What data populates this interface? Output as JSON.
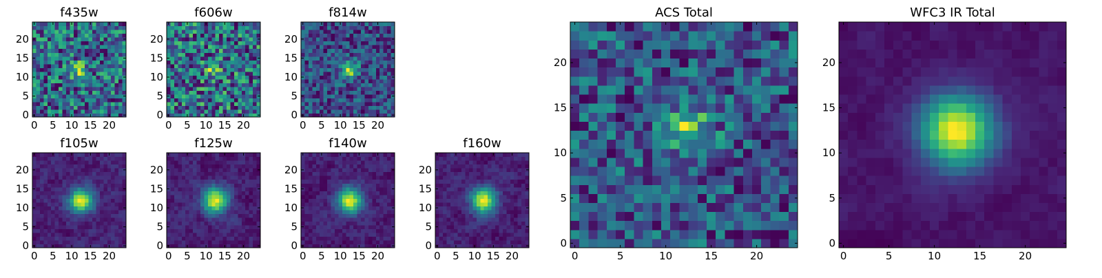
{
  "figure": {
    "background": "#ffffff"
  },
  "colormap": {
    "name": "viridis",
    "stops": [
      "#440154",
      "#482878",
      "#3e4989",
      "#31688e",
      "#26828e",
      "#1f9e89",
      "#35b779",
      "#6ece58",
      "#b5de2b",
      "#fde725"
    ]
  },
  "chart_data": [
    {
      "type": "heatmap",
      "title": "f435w",
      "size": 25,
      "xticks": [
        0,
        5,
        10,
        15,
        20
      ],
      "yticks": [
        0,
        5,
        10,
        15,
        20
      ],
      "xlim": [
        -0.5,
        24.5
      ],
      "ylim": [
        -0.5,
        24.5
      ],
      "sigma": 1.5,
      "peak": 0.25,
      "base": 0.72,
      "noise": 0.2,
      "smooth": 0,
      "seed": 11,
      "center": [
        12,
        12
      ]
    },
    {
      "type": "heatmap",
      "title": "f606w",
      "size": 25,
      "xticks": [
        0,
        5,
        10,
        15,
        20
      ],
      "yticks": [
        0,
        5,
        10,
        15,
        20
      ],
      "xlim": [
        -0.5,
        24.5
      ],
      "ylim": [
        -0.5,
        24.5
      ],
      "sigma": 1.5,
      "peak": 0.2,
      "base": 0.72,
      "noise": 0.2,
      "smooth": 0,
      "seed": 23,
      "center": [
        12,
        12
      ]
    },
    {
      "type": "heatmap",
      "title": "f814w",
      "size": 25,
      "xticks": [
        0,
        5,
        10,
        15,
        20
      ],
      "yticks": [
        0,
        5,
        10,
        15,
        20
      ],
      "xlim": [
        -0.5,
        24.5
      ],
      "ylim": [
        -0.5,
        24.5
      ],
      "sigma": 1.6,
      "peak": 0.55,
      "base": 0.5,
      "noise": 0.22,
      "smooth": 0,
      "seed": 37,
      "center": [
        12.5,
        12
      ]
    },
    {
      "type": "heatmap",
      "title": "f105w",
      "size": 25,
      "xticks": [
        0,
        5,
        10,
        15,
        20
      ],
      "yticks": [
        0,
        5,
        10,
        15,
        20
      ],
      "xlim": [
        -0.5,
        24.5
      ],
      "ylim": [
        -0.5,
        24.5
      ],
      "sigma": 2.2,
      "peak": 0.85,
      "base": 0.18,
      "noise": 0.12,
      "smooth": 0.5,
      "seed": 41,
      "center": [
        12.5,
        12
      ]
    },
    {
      "type": "heatmap",
      "title": "f125w",
      "size": 25,
      "xticks": [
        0,
        5,
        10,
        15,
        20
      ],
      "yticks": [
        0,
        5,
        10,
        15,
        20
      ],
      "xlim": [
        -0.5,
        24.5
      ],
      "ylim": [
        -0.5,
        24.5
      ],
      "sigma": 2.3,
      "peak": 0.85,
      "base": 0.2,
      "noise": 0.12,
      "smooth": 0.5,
      "seed": 53,
      "center": [
        12.5,
        12
      ]
    },
    {
      "type": "heatmap",
      "title": "f140w",
      "size": 25,
      "xticks": [
        0,
        5,
        10,
        15,
        20
      ],
      "yticks": [
        0,
        5,
        10,
        15,
        20
      ],
      "xlim": [
        -0.5,
        24.5
      ],
      "ylim": [
        -0.5,
        24.5
      ],
      "sigma": 2.3,
      "peak": 0.85,
      "base": 0.18,
      "noise": 0.12,
      "smooth": 0.5,
      "seed": 67,
      "center": [
        12.5,
        12
      ]
    },
    {
      "type": "heatmap",
      "title": "f160w",
      "size": 25,
      "xticks": [
        0,
        5,
        10,
        15,
        20
      ],
      "yticks": [
        0,
        5,
        10,
        15,
        20
      ],
      "xlim": [
        -0.5,
        24.5
      ],
      "ylim": [
        -0.5,
        24.5
      ],
      "sigma": 2.3,
      "peak": 0.85,
      "base": 0.2,
      "noise": 0.12,
      "smooth": 0.5,
      "seed": 71,
      "center": [
        12.5,
        12
      ]
    },
    {
      "type": "heatmap",
      "title": "ACS Total",
      "size": 25,
      "xticks": [
        0,
        5,
        10,
        15,
        20
      ],
      "yticks": [
        0,
        5,
        10,
        15,
        20
      ],
      "xlim": [
        -0.5,
        24.5
      ],
      "ylim": [
        -0.5,
        24.5
      ],
      "sigma": 1.8,
      "peak": 0.35,
      "base": 0.62,
      "noise": 0.18,
      "smooth": 0,
      "seed": 83,
      "center": [
        12.5,
        12.5
      ]
    },
    {
      "type": "heatmap",
      "title": "WFC3 IR Total",
      "size": 25,
      "xticks": [
        0,
        5,
        10,
        15,
        20
      ],
      "yticks": [
        0,
        5,
        10,
        15,
        20
      ],
      "xlim": [
        -0.5,
        24.5
      ],
      "ylim": [
        -0.5,
        24.5
      ],
      "sigma": 2.7,
      "peak": 0.85,
      "base": 0.17,
      "noise": 0.06,
      "smooth": 0.6,
      "seed": 97,
      "center": [
        12.5,
        12.5
      ]
    }
  ]
}
